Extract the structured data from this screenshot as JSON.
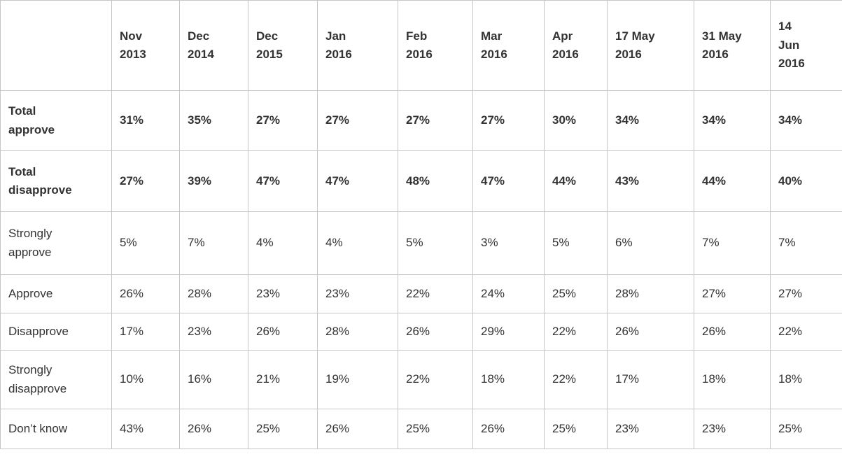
{
  "table": {
    "corner_label": "",
    "columns": [
      "Nov\n2013",
      "Dec\n2014",
      "Dec\n2015",
      "Jan\n2016",
      "Feb\n2016",
      "Mar\n2016",
      "Apr\n2016",
      "17 May\n2016",
      "31 May\n2016",
      "14\nJun\n2016"
    ],
    "rows": [
      {
        "label": "Total\napprove",
        "bold": true,
        "values": [
          "31%",
          "35%",
          "27%",
          "27%",
          "27%",
          "27%",
          "30%",
          "34%",
          "34%",
          "34%"
        ]
      },
      {
        "label": "Total\ndisapprove",
        "bold": true,
        "values": [
          "27%",
          "39%",
          "47%",
          "47%",
          "48%",
          "47%",
          "44%",
          "43%",
          "44%",
          "40%"
        ]
      },
      {
        "label": "Strongly\napprove",
        "bold": false,
        "values": [
          "5%",
          "7%",
          "4%",
          "4%",
          "5%",
          "3%",
          "5%",
          "6%",
          "7%",
          "7%"
        ]
      },
      {
        "label": "Approve",
        "bold": false,
        "values": [
          "26%",
          "28%",
          "23%",
          "23%",
          "22%",
          "24%",
          "25%",
          "28%",
          "27%",
          "27%"
        ]
      },
      {
        "label": "Disapprove",
        "bold": false,
        "values": [
          "17%",
          "23%",
          "26%",
          "28%",
          "26%",
          "29%",
          "22%",
          "26%",
          "26%",
          "22%"
        ]
      },
      {
        "label": "Strongly\ndisapprove",
        "bold": false,
        "values": [
          "10%",
          "16%",
          "21%",
          "19%",
          "22%",
          "18%",
          "22%",
          "17%",
          "18%",
          "18%"
        ]
      },
      {
        "label": "Don’t know",
        "bold": false,
        "values": [
          "43%",
          "26%",
          "25%",
          "26%",
          "25%",
          "26%",
          "25%",
          "23%",
          "23%",
          "25%"
        ]
      }
    ],
    "colors": {
      "border": "#c6c6c6",
      "text": "#333333",
      "background": "#ffffff"
    }
  },
  "chart_data": {
    "type": "table",
    "title": "",
    "categories": [
      "Nov 2013",
      "Dec 2014",
      "Dec 2015",
      "Jan 2016",
      "Feb 2016",
      "Mar 2016",
      "Apr 2016",
      "17 May 2016",
      "31 May 2016",
      "14 Jun 2016"
    ],
    "unit": "%",
    "series": [
      {
        "name": "Total approve",
        "values": [
          31,
          35,
          27,
          27,
          27,
          27,
          30,
          34,
          34,
          34
        ]
      },
      {
        "name": "Total disapprove",
        "values": [
          27,
          39,
          47,
          47,
          48,
          47,
          44,
          43,
          44,
          40
        ]
      },
      {
        "name": "Strongly approve",
        "values": [
          5,
          7,
          4,
          4,
          5,
          3,
          5,
          6,
          7,
          7
        ]
      },
      {
        "name": "Approve",
        "values": [
          26,
          28,
          23,
          23,
          22,
          24,
          25,
          28,
          27,
          27
        ]
      },
      {
        "name": "Disapprove",
        "values": [
          17,
          23,
          26,
          28,
          26,
          29,
          22,
          26,
          26,
          22
        ]
      },
      {
        "name": "Strongly disapprove",
        "values": [
          10,
          16,
          21,
          19,
          22,
          18,
          22,
          17,
          18,
          18
        ]
      },
      {
        "name": "Don’t know",
        "values": [
          43,
          26,
          25,
          26,
          25,
          26,
          25,
          23,
          23,
          25
        ]
      }
    ]
  }
}
